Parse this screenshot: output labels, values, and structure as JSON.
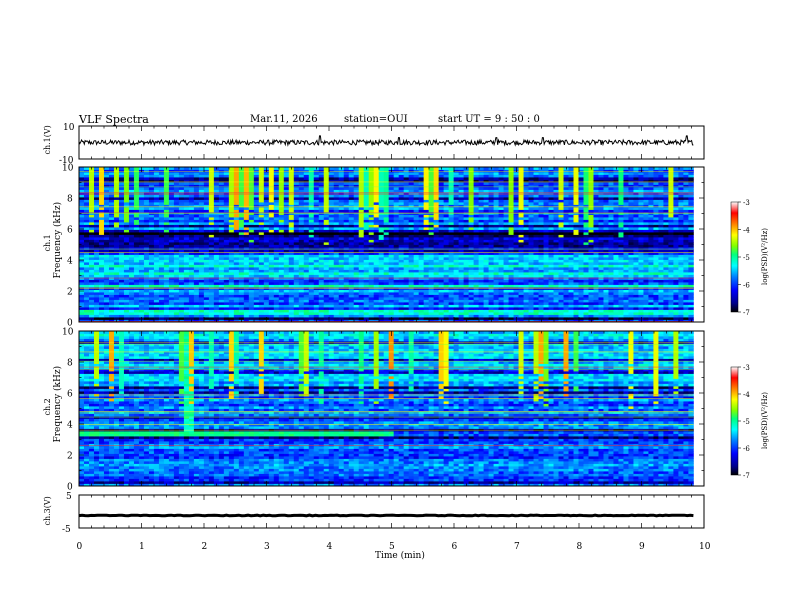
{
  "header": {
    "title": "VLF Spectra",
    "date": "Mar.11, 2026",
    "station": "station=OUI",
    "start": "start  UT =   9 : 50 : 0"
  },
  "colors": {
    "trace": "#000000",
    "colormap": [
      "#000000",
      "#00008b",
      "#0000ff",
      "#0080ff",
      "#00ffff",
      "#00ff80",
      "#80ff00",
      "#ffff00",
      "#ff8000",
      "#ff0000",
      "#ffffff"
    ]
  },
  "chart_data": [
    {
      "type": "line",
      "name": "ch1-waveform",
      "ylabel": "ch.1(V)",
      "ylim": [
        -10,
        10
      ],
      "yticks": [
        "10",
        "-10"
      ],
      "baseline": 0,
      "noise_amplitude": 1.5,
      "spikes": [
        [
          3.85,
          4
        ],
        [
          5.12,
          3
        ],
        [
          6.68,
          3
        ],
        [
          7.42,
          3
        ],
        [
          9.72,
          4
        ]
      ]
    },
    {
      "type": "heatmap",
      "name": "ch1-spectrogram",
      "ylabel": "ch.1\nFrequency (kHz)",
      "xlim": [
        0,
        10
      ],
      "data_extent": [
        0,
        9.83
      ],
      "ylim": [
        0,
        10
      ],
      "yticks": [
        "0",
        "2",
        "4",
        "6",
        "8",
        "10"
      ],
      "clim": [
        -7,
        -3
      ],
      "colorbar_label": "log(PSD)(V²/Hz)",
      "colorbar_ticks": [
        "-3",
        "-4",
        "-5",
        "-6",
        "-7"
      ],
      "bands_khz": [
        [
          0.5,
          1.2
        ],
        [
          2.0,
          2.5
        ],
        [
          2.9,
          3.3
        ],
        [
          3.6,
          4.4
        ]
      ],
      "dark_bands_khz": [
        [
          4.5,
          6.0
        ]
      ]
    },
    {
      "type": "heatmap",
      "name": "ch2-spectrogram",
      "ylabel": "ch.2\nFrequency (kHz)",
      "xlim": [
        0,
        10
      ],
      "data_extent": [
        0,
        9.83
      ],
      "ylim": [
        0,
        10
      ],
      "yticks": [
        "0",
        "2",
        "4",
        "6",
        "8",
        "10"
      ],
      "clim": [
        -7,
        -3
      ],
      "colorbar_label": "log(PSD)(V²/Hz)",
      "colorbar_ticks": [
        "-3",
        "-4",
        "-5",
        "-6",
        "-7"
      ],
      "emission_band": {
        "t": [
          0,
          5.0
        ],
        "f_khz": [
          3.2,
          3.6
        ]
      },
      "emission_burst_min": 1.75
    },
    {
      "type": "line",
      "name": "ch3-waveform",
      "ylabel": "ch.3(V)",
      "ylim": [
        -5,
        5
      ],
      "yticks": [
        "5",
        "-5"
      ],
      "baseline": -1.2,
      "noise_amplitude": 0.1,
      "xlabel": "Time  (min)",
      "xticks": [
        "0",
        "1",
        "2",
        "3",
        "4",
        "5",
        "6",
        "7",
        "8",
        "9",
        "10"
      ]
    }
  ]
}
